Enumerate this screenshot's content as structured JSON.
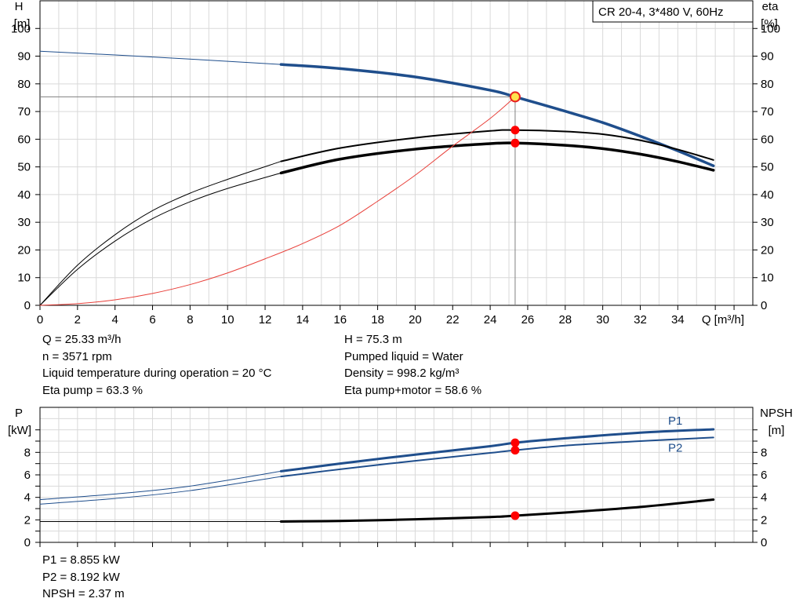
{
  "title_box": "CR 20-4, 3*480 V, 60Hz",
  "colors": {
    "curve_blue": "#1f4e8c",
    "curve_black": "#000000",
    "system_red": "#e8403a",
    "point_red": "#ff0000",
    "grid": "#d9d9d9"
  },
  "chart_data": [
    {
      "type": "line",
      "name": "pump-curve-chart",
      "xlabel": "Q [m³/h]",
      "ylabel_left": [
        "H",
        "[m]"
      ],
      "ylabel_right": [
        "eta",
        "[%]"
      ],
      "xlim": [
        0,
        38
      ],
      "ylim": [
        0,
        110
      ],
      "x_ticks": [
        0,
        2,
        4,
        6,
        8,
        10,
        12,
        14,
        16,
        18,
        20,
        22,
        24,
        26,
        28,
        30,
        32,
        34
      ],
      "y_ticks": [
        0,
        10,
        20,
        30,
        40,
        50,
        60,
        70,
        80,
        90,
        100
      ],
      "grid": true,
      "series": [
        {
          "key": "head_thin",
          "color": "#1f4e8c",
          "width": 1,
          "points": [
            [
              0,
              91.8
            ],
            [
              6,
              89.7
            ],
            [
              12.85,
              87.0
            ]
          ]
        },
        {
          "key": "head",
          "color": "#1f4e8c",
          "width": 3.5,
          "points": [
            [
              12.85,
              87.0
            ],
            [
              16,
              85.5
            ],
            [
              20,
              82.5
            ],
            [
              24,
              77.7
            ],
            [
              25.33,
              75.3
            ],
            [
              28,
              70.1
            ],
            [
              30,
              66.0
            ],
            [
              32,
              61.1
            ],
            [
              34,
              55.8
            ],
            [
              35.9,
              50.4
            ]
          ]
        },
        {
          "key": "eta_pump_thin",
          "color": "#000000",
          "width": 1,
          "points": [
            [
              0,
              0
            ],
            [
              2,
              14.5
            ],
            [
              4,
              25.5
            ],
            [
              6,
              34.2
            ],
            [
              8,
              40.5
            ],
            [
              10,
              45.5
            ],
            [
              12.85,
              52.0
            ]
          ]
        },
        {
          "key": "eta_pump",
          "color": "#000000",
          "width": 2,
          "points": [
            [
              12.85,
              52.0
            ],
            [
              16,
              56.8
            ],
            [
              20,
              60.5
            ],
            [
              24,
              63.0
            ],
            [
              25.33,
              63.3
            ],
            [
              28,
              62.8
            ],
            [
              30,
              61.8
            ],
            [
              32,
              59.6
            ],
            [
              34,
              56.3
            ],
            [
              35.9,
              52.5
            ]
          ]
        },
        {
          "key": "eta_total_thin",
          "color": "#000000",
          "width": 1,
          "points": [
            [
              0,
              0
            ],
            [
              2,
              13.0
            ],
            [
              4,
              23.2
            ],
            [
              6,
              31.3
            ],
            [
              8,
              37.4
            ],
            [
              10,
              42.2
            ],
            [
              12.85,
              47.8
            ]
          ]
        },
        {
          "key": "eta_total",
          "color": "#000000",
          "width": 3.5,
          "points": [
            [
              12.85,
              47.8
            ],
            [
              16,
              52.8
            ],
            [
              20,
              56.4
            ],
            [
              24,
              58.4
            ],
            [
              25.33,
              58.6
            ],
            [
              28,
              57.8
            ],
            [
              30,
              56.6
            ],
            [
              32,
              54.6
            ],
            [
              34,
              51.9
            ],
            [
              35.9,
              48.8
            ]
          ]
        },
        {
          "key": "system",
          "color": "#e8403a",
          "width": 1,
          "points": [
            [
              0,
              0
            ],
            [
              2,
              0.6
            ],
            [
              4,
              2.0
            ],
            [
              6,
              4.3
            ],
            [
              8,
              7.5
            ],
            [
              10,
              11.7
            ],
            [
              12,
              16.8
            ],
            [
              14,
              22.3
            ],
            [
              16,
              28.9
            ],
            [
              18,
              37.6
            ],
            [
              20,
              47.0
            ],
            [
              22,
              57.5
            ],
            [
              24,
              67.5
            ],
            [
              25.33,
              75.3
            ]
          ]
        }
      ],
      "duty_point": {
        "q": 25.33,
        "h": 75.3
      },
      "points": [
        {
          "q": 25.33,
          "v": 63.3
        },
        {
          "q": 25.33,
          "v": 58.6
        }
      ]
    },
    {
      "type": "line",
      "name": "power-npsh-chart",
      "xlim": [
        0,
        38
      ],
      "ylim": [
        0,
        12
      ],
      "ylabel_left": [
        "P",
        "[kW]"
      ],
      "ylabel_right": [
        "NPSH",
        "[m]"
      ],
      "y_ticks": [
        0,
        2,
        4,
        6,
        8
      ],
      "grid": true,
      "series": [
        {
          "key": "p1_thin",
          "color": "#1f4e8c",
          "width": 1,
          "points": [
            [
              0,
              3.8
            ],
            [
              4,
              4.3
            ],
            [
              8,
              5.0
            ],
            [
              12.85,
              6.32
            ]
          ]
        },
        {
          "key": "p1",
          "color": "#1f4e8c",
          "width": 3,
          "label": "P1",
          "points": [
            [
              12.85,
              6.32
            ],
            [
              16,
              7.0
            ],
            [
              20,
              7.8
            ],
            [
              24,
              8.55
            ],
            [
              25.33,
              8.855
            ],
            [
              28,
              9.25
            ],
            [
              32,
              9.75
            ],
            [
              35.9,
              10.05
            ]
          ]
        },
        {
          "key": "p2_thin",
          "color": "#1f4e8c",
          "width": 1,
          "points": [
            [
              0,
              3.4
            ],
            [
              4,
              3.9
            ],
            [
              8,
              4.6
            ],
            [
              12.85,
              5.85
            ]
          ]
        },
        {
          "key": "p2",
          "color": "#1f4e8c",
          "width": 2,
          "label": "P2",
          "points": [
            [
              12.85,
              5.85
            ],
            [
              16,
              6.5
            ],
            [
              20,
              7.25
            ],
            [
              24,
              7.95
            ],
            [
              25.33,
              8.192
            ],
            [
              28,
              8.6
            ],
            [
              32,
              9.0
            ],
            [
              35.9,
              9.32
            ]
          ]
        },
        {
          "key": "npsh_thin",
          "color": "#000000",
          "width": 1,
          "points": [
            [
              0,
              1.85
            ],
            [
              12.85,
              1.85
            ]
          ]
        },
        {
          "key": "npsh",
          "color": "#000000",
          "width": 3,
          "points": [
            [
              12.85,
              1.85
            ],
            [
              16,
              1.9
            ],
            [
              20,
              2.05
            ],
            [
              24,
              2.25
            ],
            [
              25.33,
              2.37
            ],
            [
              28,
              2.65
            ],
            [
              32,
              3.15
            ],
            [
              35.9,
              3.8
            ]
          ]
        }
      ],
      "points": [
        {
          "q": 25.33,
          "v": 8.855
        },
        {
          "q": 25.33,
          "v": 8.192
        },
        {
          "q": 25.33,
          "v": 2.37
        }
      ]
    }
  ],
  "info_top_left": [
    "Q = 25.33 m³/h",
    "n = 3571 rpm",
    "Liquid temperature during operation = 20 °C",
    "Eta pump = 63.3 %"
  ],
  "info_top_right": [
    "H = 75.3 m",
    "Pumped liquid = Water",
    "Density = 998.2 kg/m³",
    "Eta pump+motor = 58.6 %"
  ],
  "info_bottom": [
    "P1 = 8.855 kW",
    "P2 = 8.192 kW",
    "NPSH = 2.37 m"
  ]
}
